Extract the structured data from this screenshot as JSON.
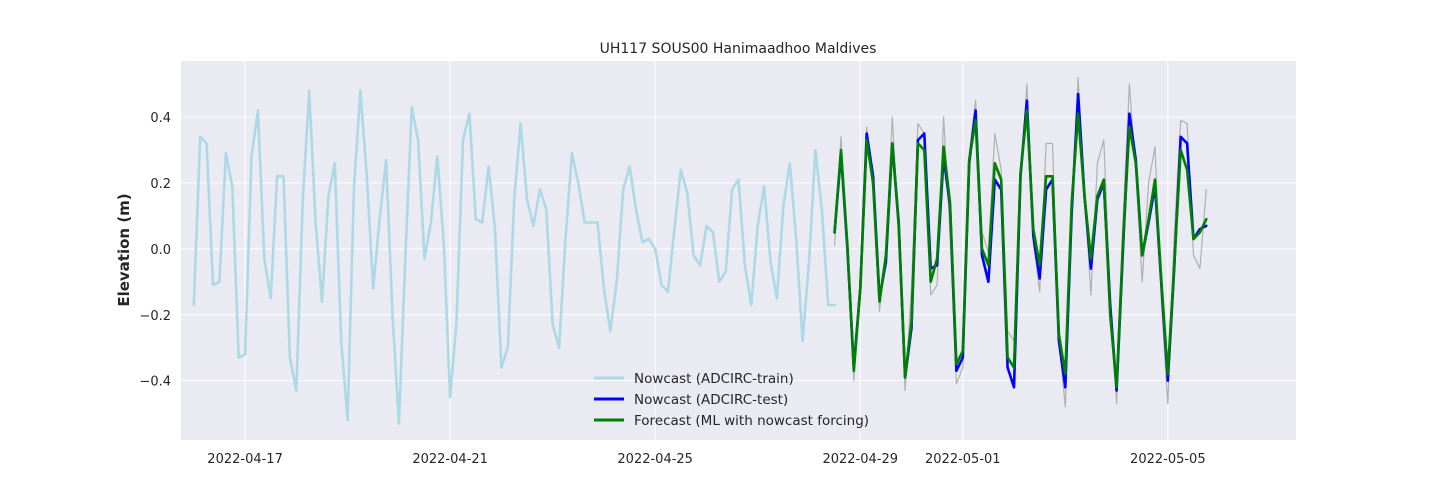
{
  "chart_data": {
    "type": "line",
    "title": "UH117 SOUS00 Hanimaadhoo Maldives",
    "xlabel": "",
    "ylabel": "Elevation (m)",
    "x_type": "date",
    "xlim": [
      "2022-04-15T18:00",
      "2022-05-07T12:00"
    ],
    "ylim": [
      -0.58,
      0.57
    ],
    "xticks": [
      "2022-04-17",
      "2022-04-21",
      "2022-04-25",
      "2022-04-29",
      "2022-05-01",
      "2022-05-05"
    ],
    "yticks": [
      -0.4,
      -0.2,
      0.0,
      0.2,
      0.4
    ],
    "ytick_labels": [
      "−0.4",
      "−0.2",
      "0.0",
      "0.2",
      "0.4"
    ],
    "grid": true,
    "legend_position": "lower-center",
    "background_color": "#eaeaf2",
    "series": [
      {
        "name": "Nowcast (ADCIRC-train)",
        "color": "#add8e6",
        "x": [
          "2022-04-16T00:00",
          "2022-04-16T03:00",
          "2022-04-16T06:00",
          "2022-04-16T09:00",
          "2022-04-16T12:00",
          "2022-04-16T15:00",
          "2022-04-16T18:00",
          "2022-04-16T21:00",
          "2022-04-17T00:00",
          "2022-04-17T03:00",
          "2022-04-17T06:00",
          "2022-04-17T09:00",
          "2022-04-17T12:00",
          "2022-04-17T15:00",
          "2022-04-17T18:00",
          "2022-04-17T21:00",
          "2022-04-18T00:00",
          "2022-04-18T03:00",
          "2022-04-18T06:00",
          "2022-04-18T09:00",
          "2022-04-18T12:00",
          "2022-04-18T15:00",
          "2022-04-18T18:00",
          "2022-04-18T21:00",
          "2022-04-19T00:00",
          "2022-04-19T03:00",
          "2022-04-19T06:00",
          "2022-04-19T09:00",
          "2022-04-19T12:00",
          "2022-04-19T15:00",
          "2022-04-19T18:00",
          "2022-04-19T21:00",
          "2022-04-20T00:00",
          "2022-04-20T03:00",
          "2022-04-20T06:00",
          "2022-04-20T09:00",
          "2022-04-20T12:00",
          "2022-04-20T15:00",
          "2022-04-20T18:00",
          "2022-04-20T21:00",
          "2022-04-21T00:00",
          "2022-04-21T03:00",
          "2022-04-21T06:00",
          "2022-04-21T09:00",
          "2022-04-21T12:00",
          "2022-04-21T15:00",
          "2022-04-21T18:00",
          "2022-04-21T21:00",
          "2022-04-22T00:00",
          "2022-04-22T03:00",
          "2022-04-22T06:00",
          "2022-04-22T09:00",
          "2022-04-22T12:00",
          "2022-04-22T15:00",
          "2022-04-22T18:00",
          "2022-04-22T21:00",
          "2022-04-23T00:00",
          "2022-04-23T03:00",
          "2022-04-23T06:00",
          "2022-04-23T09:00",
          "2022-04-23T12:00",
          "2022-04-23T15:00",
          "2022-04-23T18:00",
          "2022-04-23T21:00",
          "2022-04-24T00:00",
          "2022-04-24T03:00",
          "2022-04-24T06:00",
          "2022-04-24T09:00",
          "2022-04-24T12:00",
          "2022-04-24T15:00",
          "2022-04-24T18:00",
          "2022-04-24T21:00",
          "2022-04-25T00:00",
          "2022-04-25T03:00",
          "2022-04-25T06:00",
          "2022-04-25T09:00",
          "2022-04-25T12:00",
          "2022-04-25T15:00",
          "2022-04-25T18:00",
          "2022-04-25T21:00",
          "2022-04-26T00:00",
          "2022-04-26T03:00",
          "2022-04-26T06:00",
          "2022-04-26T09:00",
          "2022-04-26T12:00",
          "2022-04-26T15:00",
          "2022-04-26T18:00",
          "2022-04-26T21:00",
          "2022-04-27T00:00",
          "2022-04-27T03:00",
          "2022-04-27T06:00",
          "2022-04-27T09:00",
          "2022-04-27T12:00",
          "2022-04-27T15:00",
          "2022-04-27T18:00",
          "2022-04-27T21:00",
          "2022-04-28T00:00",
          "2022-04-28T03:00",
          "2022-04-28T06:00",
          "2022-04-28T09:00",
          "2022-04-28T12:00"
        ],
        "y": [
          -0.17,
          0.34,
          0.32,
          -0.11,
          -0.1,
          0.29,
          0.19,
          -0.33,
          -0.32,
          0.28,
          0.42,
          -0.03,
          -0.15,
          0.22,
          0.22,
          -0.33,
          -0.43,
          0.15,
          0.48,
          0.08,
          -0.16,
          0.16,
          0.26,
          -0.28,
          -0.52,
          0.19,
          0.48,
          0.22,
          -0.12,
          0.09,
          0.27,
          -0.2,
          -0.53,
          -0.03,
          0.43,
          0.33,
          -0.03,
          0.08,
          0.28,
          0.02,
          -0.45,
          -0.22,
          0.33,
          0.41,
          0.09,
          0.08,
          0.25,
          0.06,
          -0.36,
          -0.3,
          0.15,
          0.38,
          0.15,
          0.07,
          0.18,
          0.12,
          -0.23,
          -0.3,
          0.03,
          0.29,
          0.2,
          0.08,
          0.08,
          0.08,
          -0.12,
          -0.25,
          -0.1,
          0.18,
          0.25,
          0.12,
          0.02,
          0.03,
          0.0,
          -0.11,
          -0.13,
          0.06,
          0.24,
          0.17,
          -0.02,
          -0.05,
          0.07,
          0.05,
          -0.1,
          -0.07,
          0.18,
          0.21,
          -0.05,
          -0.17,
          0.07,
          0.19,
          -0.04,
          -0.15,
          0.13,
          0.26,
          0.03,
          -0.28,
          -0.04,
          0.3,
          0.12,
          -0.17,
          -0.17
        ]
      },
      {
        "name": "",
        "color": "#b0b0b0",
        "x": [
          "2022-04-28T12:00",
          "2022-04-28T15:00",
          "2022-04-28T18:00",
          "2022-04-28T21:00",
          "2022-04-29T00:00",
          "2022-04-29T03:00",
          "2022-04-29T06:00",
          "2022-04-29T09:00",
          "2022-04-29T12:00",
          "2022-04-29T15:00",
          "2022-04-29T18:00",
          "2022-04-29T21:00",
          "2022-04-30T00:00",
          "2022-04-30T03:00",
          "2022-04-30T06:00",
          "2022-04-30T09:00",
          "2022-04-30T12:00",
          "2022-04-30T15:00",
          "2022-04-30T18:00",
          "2022-04-30T21:00",
          "2022-05-01T00:00",
          "2022-05-01T03:00",
          "2022-05-01T06:00",
          "2022-05-01T09:00",
          "2022-05-01T12:00",
          "2022-05-01T15:00",
          "2022-05-01T18:00",
          "2022-05-01T21:00",
          "2022-05-02T00:00",
          "2022-05-02T03:00",
          "2022-05-02T06:00",
          "2022-05-02T09:00",
          "2022-05-02T12:00",
          "2022-05-02T15:00",
          "2022-05-02T18:00",
          "2022-05-02T21:00",
          "2022-05-03T00:00",
          "2022-05-03T03:00",
          "2022-05-03T06:00",
          "2022-05-03T09:00",
          "2022-05-03T12:00",
          "2022-05-03T15:00",
          "2022-05-03T18:00",
          "2022-05-03T21:00",
          "2022-05-04T00:00",
          "2022-05-04T03:00",
          "2022-05-04T06:00",
          "2022-05-04T09:00",
          "2022-05-04T12:00",
          "2022-05-04T15:00",
          "2022-05-04T18:00",
          "2022-05-04T21:00",
          "2022-05-05T00:00",
          "2022-05-05T03:00",
          "2022-05-05T06:00",
          "2022-05-05T09:00",
          "2022-05-05T12:00",
          "2022-05-05T15:00",
          "2022-05-05T18:00"
        ],
        "y": [
          0.01,
          0.34,
          0.01,
          -0.4,
          -0.12,
          0.37,
          0.17,
          -0.19,
          0.0,
          0.4,
          0.05,
          -0.43,
          -0.12,
          0.38,
          0.35,
          -0.14,
          -0.11,
          0.4,
          0.05,
          -0.41,
          -0.36,
          0.29,
          0.45,
          0.05,
          -0.01,
          0.35,
          0.24,
          -0.25,
          -0.28,
          0.2,
          0.5,
          0.02,
          -0.13,
          0.32,
          0.32,
          -0.27,
          -0.48,
          0.09,
          0.52,
          0.17,
          -0.14,
          0.26,
          0.33,
          -0.14,
          -0.47,
          0.09,
          0.5,
          0.23,
          -0.1,
          0.2,
          0.31,
          -0.16,
          -0.47,
          0.04,
          0.39,
          0.38,
          -0.02,
          -0.06,
          0.18
        ]
      },
      {
        "name": "Nowcast (ADCIRC-test)",
        "color": "#0000ff",
        "x": [
          "2022-04-28T12:00",
          "2022-04-28T15:00",
          "2022-04-28T18:00",
          "2022-04-28T21:00",
          "2022-04-29T00:00",
          "2022-04-29T03:00",
          "2022-04-29T06:00",
          "2022-04-29T09:00",
          "2022-04-29T12:00",
          "2022-04-29T15:00",
          "2022-04-29T18:00",
          "2022-04-29T21:00",
          "2022-04-30T00:00",
          "2022-04-30T03:00",
          "2022-04-30T06:00",
          "2022-04-30T09:00",
          "2022-04-30T12:00",
          "2022-04-30T15:00",
          "2022-04-30T18:00",
          "2022-04-30T21:00",
          "2022-05-01T00:00",
          "2022-05-01T03:00",
          "2022-05-01T06:00",
          "2022-05-01T09:00",
          "2022-05-01T12:00",
          "2022-05-01T15:00",
          "2022-05-01T18:00",
          "2022-05-01T21:00",
          "2022-05-02T00:00",
          "2022-05-02T03:00",
          "2022-05-02T06:00",
          "2022-05-02T09:00",
          "2022-05-02T12:00",
          "2022-05-02T15:00",
          "2022-05-02T18:00",
          "2022-05-02T21:00",
          "2022-05-03T00:00",
          "2022-05-03T03:00",
          "2022-05-03T06:00",
          "2022-05-03T09:00",
          "2022-05-03T12:00",
          "2022-05-03T15:00",
          "2022-05-03T18:00",
          "2022-05-03T21:00",
          "2022-05-04T00:00",
          "2022-05-04T03:00",
          "2022-05-04T06:00",
          "2022-05-04T09:00",
          "2022-05-04T12:00",
          "2022-05-04T15:00",
          "2022-05-04T18:00",
          "2022-05-04T21:00",
          "2022-05-05T00:00",
          "2022-05-05T03:00",
          "2022-05-05T06:00",
          "2022-05-05T09:00",
          "2022-05-05T12:00",
          "2022-05-05T15:00",
          "2022-05-05T18:00"
        ],
        "y": [
          0.05,
          0.29,
          0.0,
          -0.36,
          -0.12,
          0.35,
          0.22,
          -0.15,
          -0.04,
          0.32,
          0.08,
          -0.39,
          -0.24,
          0.33,
          0.35,
          -0.06,
          -0.05,
          0.28,
          0.13,
          -0.37,
          -0.33,
          0.26,
          0.42,
          -0.02,
          -0.1,
          0.21,
          0.18,
          -0.36,
          -0.42,
          0.22,
          0.45,
          0.04,
          -0.09,
          0.18,
          0.21,
          -0.28,
          -0.42,
          0.11,
          0.47,
          0.16,
          -0.06,
          0.15,
          0.2,
          -0.17,
          -0.43,
          0.0,
          0.41,
          0.27,
          -0.02,
          0.08,
          0.19,
          -0.11,
          -0.4,
          -0.06,
          0.34,
          0.32,
          0.03,
          0.06,
          0.07
        ]
      },
      {
        "name": "Forecast (ML with nowcast forcing)",
        "color": "#008000",
        "x": [
          "2022-04-28T12:00",
          "2022-04-28T15:00",
          "2022-04-28T18:00",
          "2022-04-28T21:00",
          "2022-04-29T00:00",
          "2022-04-29T03:00",
          "2022-04-29T06:00",
          "2022-04-29T09:00",
          "2022-04-29T12:00",
          "2022-04-29T15:00",
          "2022-04-29T18:00",
          "2022-04-29T21:00",
          "2022-04-30T00:00",
          "2022-04-30T03:00",
          "2022-04-30T06:00",
          "2022-04-30T09:00",
          "2022-04-30T12:00",
          "2022-04-30T15:00",
          "2022-04-30T18:00",
          "2022-04-30T21:00",
          "2022-05-01T00:00",
          "2022-05-01T03:00",
          "2022-05-01T06:00",
          "2022-05-01T09:00",
          "2022-05-01T12:00",
          "2022-05-01T15:00",
          "2022-05-01T18:00",
          "2022-05-01T21:00",
          "2022-05-02T00:00",
          "2022-05-02T03:00",
          "2022-05-02T06:00",
          "2022-05-02T09:00",
          "2022-05-02T12:00",
          "2022-05-02T15:00",
          "2022-05-02T18:00",
          "2022-05-02T21:00",
          "2022-05-03T00:00",
          "2022-05-03T03:00",
          "2022-05-03T06:00",
          "2022-05-03T09:00",
          "2022-05-03T12:00",
          "2022-05-03T15:00",
          "2022-05-03T18:00",
          "2022-05-03T21:00",
          "2022-05-04T00:00",
          "2022-05-04T03:00",
          "2022-05-04T06:00",
          "2022-05-04T09:00",
          "2022-05-04T12:00",
          "2022-05-04T15:00",
          "2022-05-04T18:00",
          "2022-05-04T21:00",
          "2022-05-05T00:00",
          "2022-05-05T03:00",
          "2022-05-05T06:00",
          "2022-05-05T09:00",
          "2022-05-05T12:00",
          "2022-05-05T15:00",
          "2022-05-05T18:00"
        ],
        "y": [
          0.05,
          0.3,
          0.01,
          -0.37,
          -0.12,
          0.33,
          0.2,
          -0.16,
          -0.02,
          0.32,
          0.07,
          -0.39,
          -0.22,
          0.32,
          0.3,
          -0.1,
          -0.03,
          0.31,
          0.14,
          -0.35,
          -0.31,
          0.27,
          0.39,
          0.0,
          -0.05,
          0.26,
          0.21,
          -0.33,
          -0.36,
          0.23,
          0.42,
          0.06,
          -0.05,
          0.22,
          0.22,
          -0.26,
          -0.38,
          0.14,
          0.41,
          0.16,
          -0.03,
          0.16,
          0.21,
          -0.2,
          -0.42,
          0.02,
          0.37,
          0.26,
          -0.02,
          0.09,
          0.21,
          -0.1,
          -0.38,
          -0.05,
          0.3,
          0.24,
          0.03,
          0.05,
          0.09
        ]
      }
    ]
  }
}
